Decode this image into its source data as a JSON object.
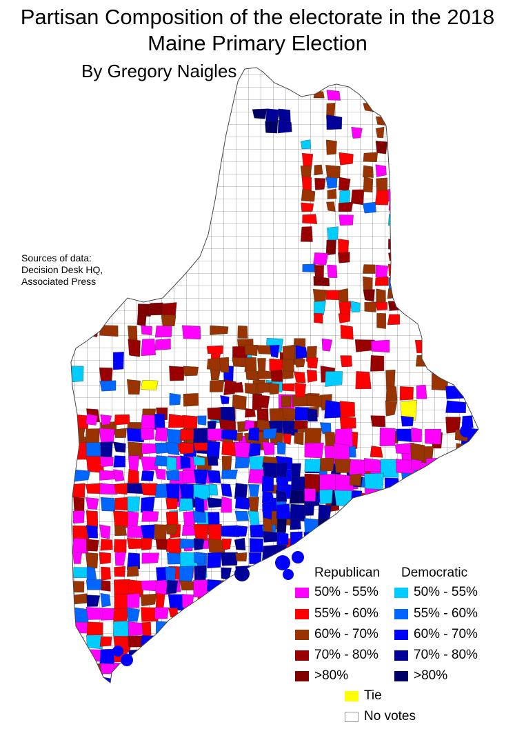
{
  "title": {
    "line1": "Partisan Composition of the electorate in the 2018",
    "line2": "Maine Primary Election"
  },
  "author": "By Gregory Naigles",
  "sources": [
    "Sources of data:",
    "Decision Desk HQ,",
    "Associated Press"
  ],
  "legend": {
    "republican_heading": "Republican",
    "democratic_heading": "Democratic",
    "republican": [
      {
        "label": "50% - 55%",
        "color": "#ff00ff"
      },
      {
        "label": "55% - 60%",
        "color": "#ff0000"
      },
      {
        "label": "60% - 70%",
        "color": "#993300"
      },
      {
        "label": "70% - 80%",
        "color": "#990000"
      },
      {
        "label": ">80%",
        "color": "#800000"
      }
    ],
    "democratic": [
      {
        "label": "50% - 55%",
        "color": "#00ccff"
      },
      {
        "label": "55% - 60%",
        "color": "#0066ff"
      },
      {
        "label": "60% - 70%",
        "color": "#0000ff"
      },
      {
        "label": "70% - 80%",
        "color": "#000099"
      },
      {
        "label": ">80%",
        "color": "#000066"
      }
    ],
    "tie": {
      "label": "Tie",
      "color": "#ffff00"
    },
    "no_votes": {
      "label": "No votes",
      "color": "#ffffff"
    }
  }
}
